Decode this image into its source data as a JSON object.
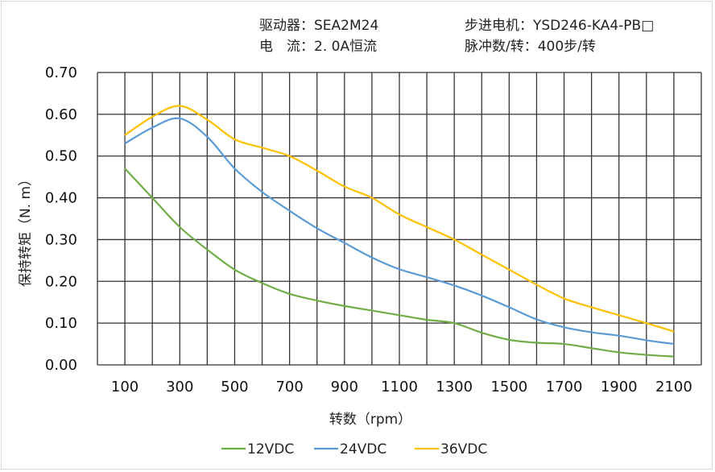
{
  "header": {
    "driver": "驱动器：SEA2M24",
    "motor": "步进电机：YSD246-KA4-PB□",
    "current": "电　流：2. 0A恒流",
    "pulses": "脉冲数/转：400步/转"
  },
  "chart_data": {
    "type": "line",
    "xlabel": "转数（rpm）",
    "ylabel": "保持转矩（N. m）",
    "xlim": [
      0,
      2200
    ],
    "ylim": [
      0,
      0.7
    ],
    "grid": true,
    "legend_position": "bottom",
    "x_ticks": [
      100,
      300,
      500,
      700,
      900,
      1100,
      1300,
      1500,
      1700,
      1900,
      2100
    ],
    "x_tick_labels": [
      "100",
      "300",
      "500",
      "700",
      "900",
      "1100",
      "1300",
      "1500",
      "1700",
      "1900",
      "2100"
    ],
    "y_ticks": [
      0,
      0.1,
      0.2,
      0.3,
      0.4,
      0.5,
      0.6,
      0.7
    ],
    "y_tick_labels": [
      "0.00",
      "0.10",
      "0.20",
      "0.30",
      "0.40",
      "0.50",
      "0.60",
      "0.70"
    ],
    "x": [
      100,
      200,
      300,
      400,
      500,
      600,
      700,
      800,
      900,
      1000,
      1100,
      1200,
      1300,
      1400,
      1500,
      1600,
      1700,
      1800,
      1900,
      2000,
      2100
    ],
    "series": [
      {
        "name": "12VDC",
        "color": "#70ad47",
        "values": [
          0.47,
          0.4,
          0.33,
          0.276,
          0.228,
          0.196,
          0.17,
          0.154,
          0.141,
          0.13,
          0.119,
          0.108,
          0.1,
          0.077,
          0.06,
          0.053,
          0.05,
          0.04,
          0.03,
          0.024,
          0.02
        ]
      },
      {
        "name": "24VDC",
        "color": "#5b9bd5",
        "values": [
          0.53,
          0.568,
          0.59,
          0.546,
          0.47,
          0.414,
          0.369,
          0.327,
          0.292,
          0.257,
          0.229,
          0.21,
          0.19,
          0.166,
          0.138,
          0.109,
          0.09,
          0.078,
          0.07,
          0.059,
          0.05
        ]
      },
      {
        "name": "36VDC",
        "color": "#ffc000",
        "values": [
          0.55,
          0.594,
          0.62,
          0.587,
          0.54,
          0.52,
          0.5,
          0.465,
          0.427,
          0.4,
          0.36,
          0.33,
          0.3,
          0.264,
          0.228,
          0.192,
          0.159,
          0.138,
          0.119,
          0.1,
          0.08
        ]
      }
    ]
  }
}
